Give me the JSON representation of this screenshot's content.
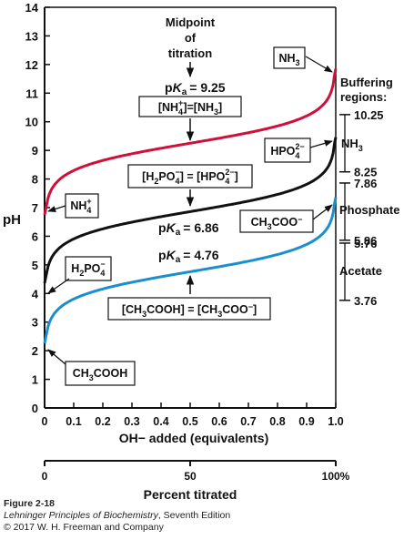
{
  "chart_data": {
    "type": "line",
    "xlabel": "OH− added (equivalents)",
    "ylabel": "pH",
    "xlim": [
      0,
      1.0
    ],
    "ylim": [
      0,
      14
    ],
    "x_ticks": [
      "0",
      "0.1",
      "0.2",
      "0.3",
      "0.4",
      "0.5",
      "0.6",
      "0.7",
      "0.8",
      "0.9",
      "1.0"
    ],
    "y_ticks": [
      "0",
      "1",
      "2",
      "3",
      "4",
      "5",
      "6",
      "7",
      "8",
      "9",
      "10",
      "11",
      "12",
      "13",
      "14"
    ],
    "secondary_axis": {
      "label": "Percent titrated",
      "ticks": [
        "0",
        "50",
        "100%"
      ]
    },
    "series": [
      {
        "acid": "NH4+",
        "base": "NH3",
        "pKa": 9.25,
        "color": "#d0103a"
      },
      {
        "acid": "H2PO4-",
        "base": "HPO42-",
        "pKa": 6.86,
        "color": "#111111"
      },
      {
        "acid": "CH3COOH",
        "base": "CH3COO-",
        "pKa": 4.76,
        "color": "#1a8fd0"
      }
    ],
    "annotations": {
      "midpoint": [
        "Midpoint",
        "of",
        "titration"
      ],
      "ammonia_pka": "= 9.25",
      "phosphate_pka": "= 6.86",
      "acetate_pka": "= 4.76",
      "pka_prefix": "p",
      "pka_italic": "K",
      "pka_sub": "a"
    },
    "labels": {
      "nh3": "NH3",
      "nh4": "NH4+",
      "hpo4": "HPO42−",
      "h2po4": "H2PO4−",
      "ch3coo": "CH3COO−",
      "ch3cooh": "CH3COOH"
    },
    "buffering": {
      "title": [
        "Buffering",
        "regions:"
      ],
      "values": [
        "10.25",
        "8.25",
        "7.86",
        "5.86",
        "5.76",
        "3.76"
      ],
      "regions": [
        "NH3",
        "Phosphate",
        "Acetate"
      ]
    }
  },
  "caption": {
    "figure": "Figure 2-18",
    "book": "Lehninger Principles of Biochemistry",
    "edition": ", Seventh Edition",
    "copyright": "© 2017 W. H. Freeman and Company"
  }
}
